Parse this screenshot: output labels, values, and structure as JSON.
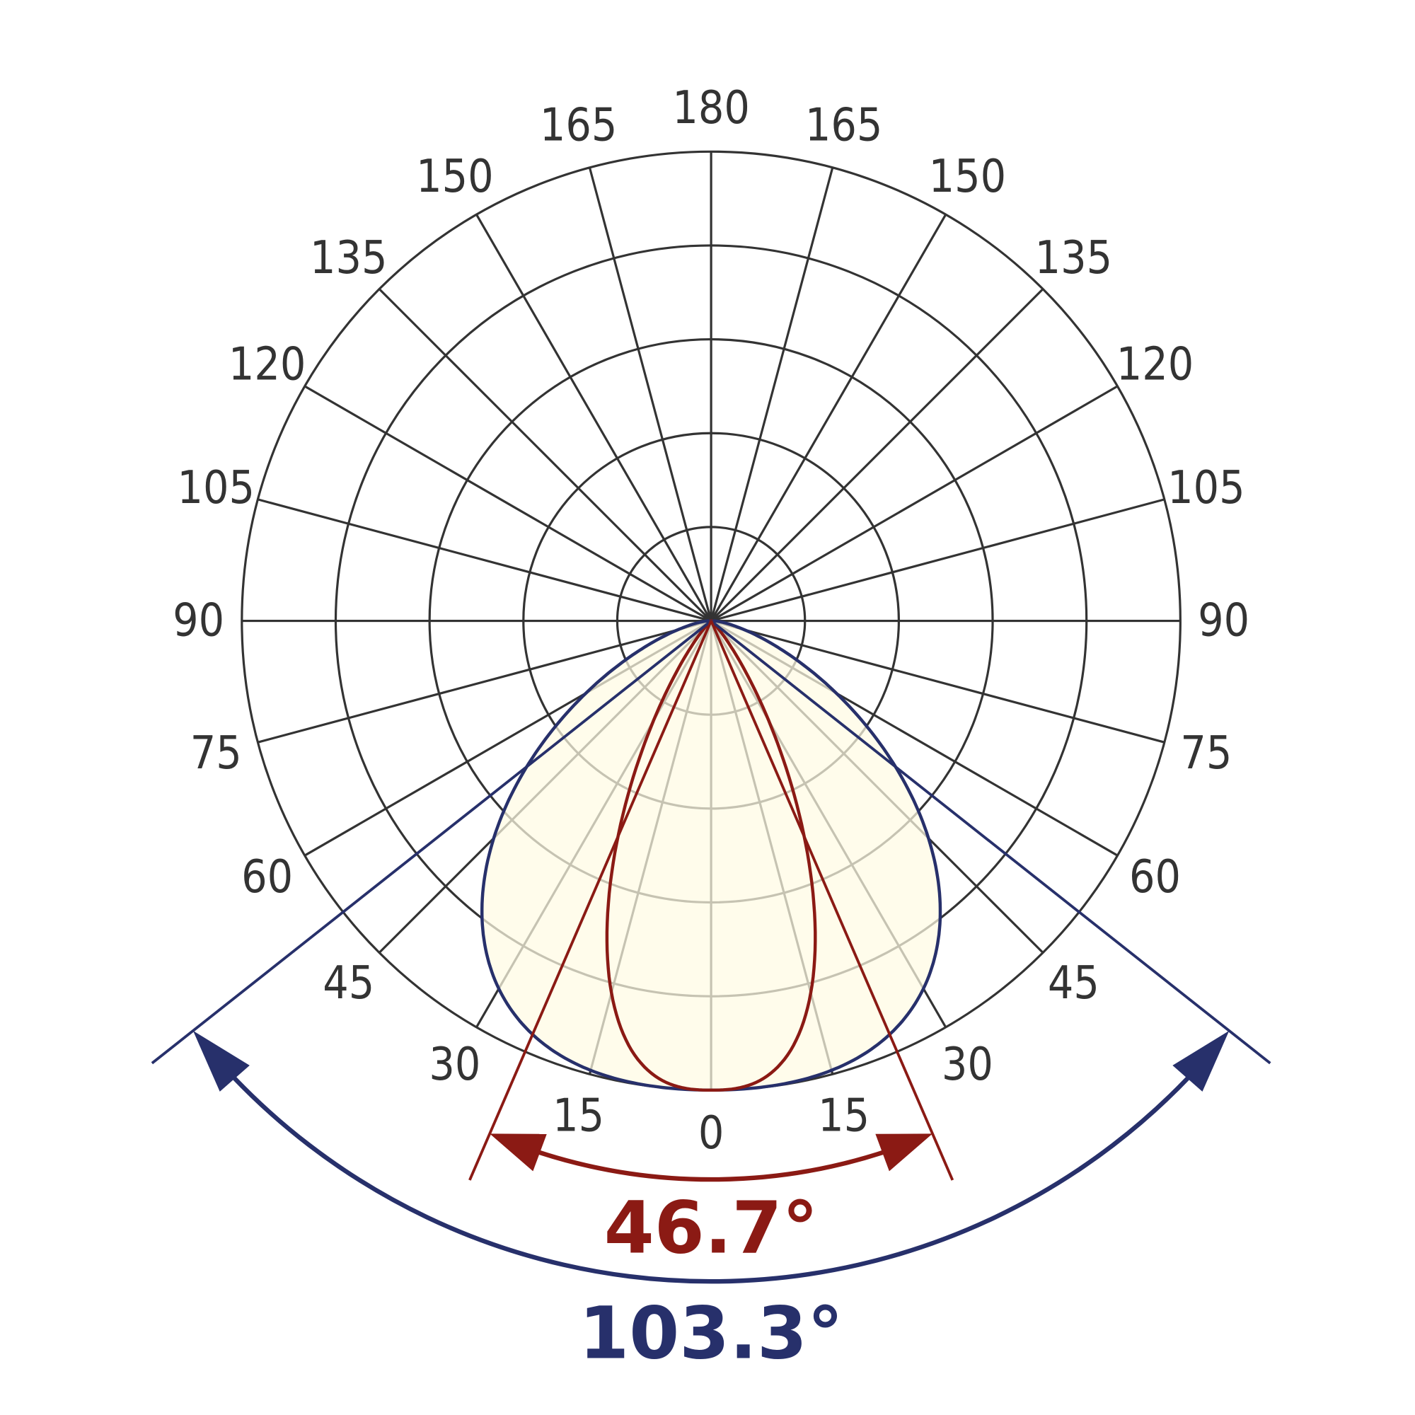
{
  "chart_data": {
    "type": "polar",
    "angular_tick_labels": [
      "0",
      "15",
      "30",
      "45",
      "60",
      "75",
      "90",
      "105",
      "120",
      "135",
      "150",
      "165",
      "180"
    ],
    "radial_rings": 5,
    "grid": true,
    "series": [
      {
        "color": "#27306b",
        "beam_angle": 103.3,
        "label": "103.3°"
      },
      {
        "color": "#8b1a14",
        "beam_angle": 46.7,
        "label": "46.7°"
      }
    ],
    "fill_color": "#fffbe3"
  }
}
